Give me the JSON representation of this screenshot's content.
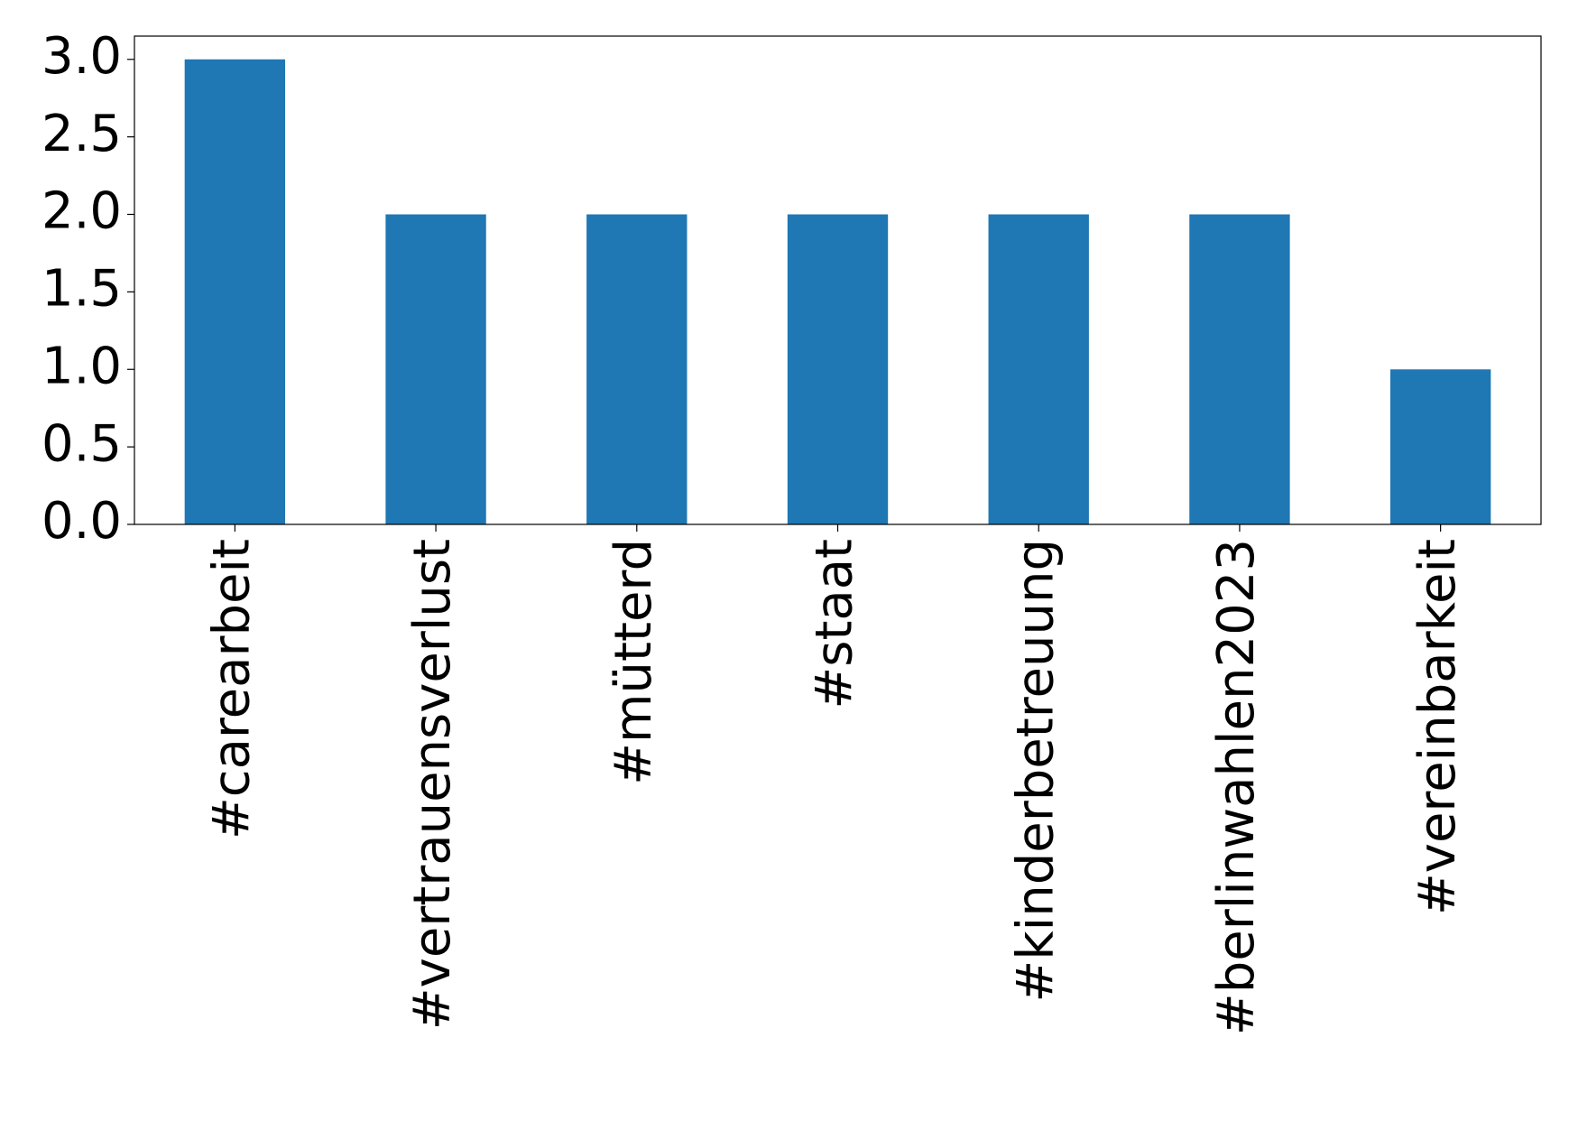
{
  "chart_data": {
    "type": "bar",
    "categories": [
      "#carearbeit",
      "#vertrauensverlust",
      "#mütterd",
      "#staat",
      "#kinderbetreuung",
      "#berlinwahlen2023",
      "#vereinbarkeit"
    ],
    "values": [
      3,
      2,
      2,
      2,
      2,
      2,
      1
    ],
    "color": "#1f77b4",
    "ylim": [
      0,
      3.15
    ],
    "yticks": [
      {
        "value": 0,
        "label": "0.0"
      },
      {
        "value": 0.5,
        "label": "0.5"
      },
      {
        "value": 1,
        "label": "1.0"
      },
      {
        "value": 1.5,
        "label": "1.5"
      },
      {
        "value": 2,
        "label": "2.0"
      },
      {
        "value": 2.5,
        "label": "2.5"
      },
      {
        "value": 3,
        "label": "3.0"
      }
    ],
    "grid": false
  }
}
